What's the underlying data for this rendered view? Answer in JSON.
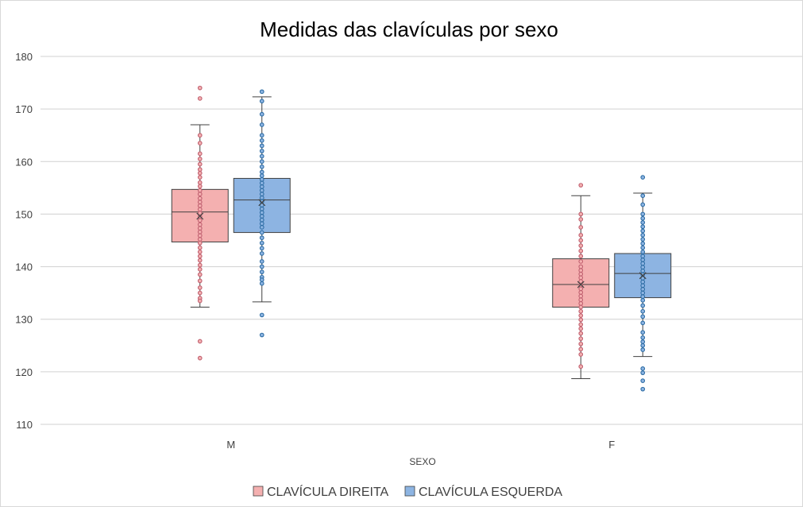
{
  "chart_data": {
    "type": "box",
    "title": "Medidas das clavículas por sexo",
    "xlabel": "SEXO",
    "ylabel": "",
    "ylim": [
      110,
      180
    ],
    "yticks": [
      110,
      120,
      130,
      140,
      150,
      160,
      170,
      180
    ],
    "grid": true,
    "legend_position": "bottom",
    "categories": [
      "M",
      "F"
    ],
    "series": [
      {
        "name": "CLAVÍCULA DIREITA",
        "color": "#f4b0b0",
        "point_color": "#c06070",
        "boxes": [
          {
            "category": "M",
            "whisker_low": 132.3,
            "q1": 144.7,
            "median": 150.4,
            "q3": 154.7,
            "whisker_high": 167.0,
            "mean": 149.6,
            "points": [
              174.0,
              172.0,
              165.0,
              163.5,
              161.5,
              160.5,
              159.5,
              158.5,
              157.8,
              157.0,
              156.0,
              155.3,
              154.5,
              153.8,
              153.0,
              152.3,
              151.6,
              150.9,
              150.2,
              149.5,
              148.8,
              148.0,
              147.3,
              146.6,
              145.9,
              145.2,
              144.5,
              143.6,
              142.8,
              142.0,
              141.2,
              140.3,
              139.5,
              138.5,
              137.3,
              136.0,
              135.0,
              134.0,
              133.5,
              125.8,
              122.6
            ]
          },
          {
            "category": "F",
            "whisker_low": 118.7,
            "q1": 132.3,
            "median": 136.6,
            "q3": 141.5,
            "whisker_high": 153.5,
            "mean": 136.6,
            "points": [
              155.5,
              150.0,
              149.0,
              147.5,
              146.0,
              145.0,
              144.0,
              143.0,
              142.0,
              141.0,
              140.0,
              139.3,
              138.6,
              137.9,
              137.2,
              136.5,
              135.8,
              135.1,
              134.4,
              133.7,
              133.0,
              132.3,
              131.5,
              130.7,
              129.9,
              129.0,
              128.2,
              127.3,
              126.3,
              125.3,
              124.3,
              123.3,
              121.0
            ]
          }
        ]
      },
      {
        "name": "CLAVÍCULA ESQUERDA",
        "color": "#8db4e2",
        "point_color": "#2e6da4",
        "boxes": [
          {
            "category": "M",
            "whisker_low": 133.3,
            "q1": 146.5,
            "median": 152.7,
            "q3": 156.8,
            "whisker_high": 172.3,
            "mean": 152.2,
            "points": [
              173.3,
              171.5,
              169.0,
              167.0,
              165.0,
              164.0,
              163.0,
              162.0,
              161.0,
              160.0,
              159.0,
              158.0,
              157.3,
              156.6,
              155.9,
              155.2,
              154.5,
              153.8,
              153.1,
              152.4,
              151.7,
              151.0,
              150.3,
              149.6,
              148.9,
              148.2,
              147.5,
              146.5,
              145.5,
              144.5,
              143.5,
              142.5,
              141.0,
              140.0,
              139.0,
              138.0,
              137.5,
              136.8,
              130.8,
              127.0
            ]
          },
          {
            "category": "F",
            "whisker_low": 122.9,
            "q1": 134.1,
            "median": 138.7,
            "q3": 142.5,
            "whisker_high": 154.0,
            "mean": 138.3,
            "points": [
              157.0,
              153.5,
              151.8,
              150.0,
              149.2,
              148.4,
              147.6,
              146.8,
              146.0,
              145.2,
              144.4,
              143.6,
              142.8,
              142.0,
              141.3,
              140.6,
              139.9,
              139.2,
              138.5,
              137.8,
              137.1,
              136.4,
              135.7,
              135.0,
              134.3,
              133.6,
              132.6,
              131.5,
              130.5,
              129.3,
              127.5,
              126.5,
              125.7,
              125.0,
              124.2,
              120.6,
              119.8,
              118.3,
              116.7
            ]
          }
        ]
      }
    ]
  }
}
